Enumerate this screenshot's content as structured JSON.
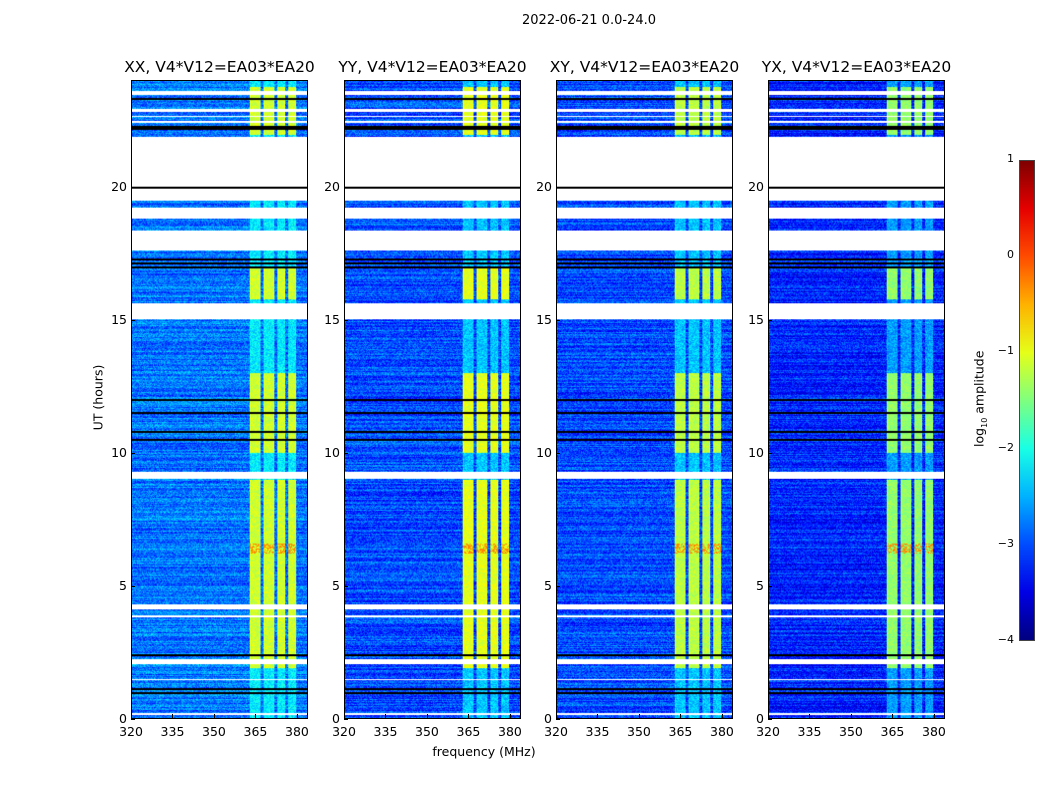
{
  "figure": {
    "suptitle": "2022-06-21 0.0-24.0"
  },
  "chart_data": {
    "type": "heatmap",
    "title": "2022-06-21 0.0-24.0",
    "xlabel": "frequency (MHz)",
    "ylabel": "UT (hours)",
    "xlim": [
      320,
      384
    ],
    "ylim": [
      0,
      24
    ],
    "xticks": [
      "320",
      "335",
      "350",
      "365",
      "380"
    ],
    "yticks": [
      "0",
      "5",
      "10",
      "15",
      "20"
    ],
    "colormap": "jet",
    "colorbar": {
      "label_pre": "log",
      "label_sub": "10",
      "label_post": " amplitude",
      "range": [
        -4,
        1
      ],
      "ticks": [
        "1",
        "0",
        "−1",
        "−2",
        "−3",
        "−4"
      ],
      "tick_values": [
        1,
        0,
        -1,
        -2,
        -3,
        -4
      ]
    },
    "panels": [
      {
        "title": "XX, V4*V12=EA03*EA20",
        "background_log_amp": -2.8,
        "rfi_log_amp": -1.1
      },
      {
        "title": "YY, V4*V12=EA03*EA20",
        "background_log_amp": -3.0,
        "rfi_log_amp": -1.0
      },
      {
        "title": "XY, V4*V12=EA03*EA20",
        "background_log_amp": -3.0,
        "rfi_log_amp": -1.2
      },
      {
        "title": "YX, V4*V12=EA03*EA20",
        "background_log_amp": -3.2,
        "rfi_log_amp": -1.4
      }
    ],
    "flagged_hours": [
      [
        20.05,
        21.9
      ],
      [
        19.5,
        19.95
      ],
      [
        18.85,
        19.25
      ],
      [
        17.65,
        18.4
      ],
      [
        15.05,
        15.65
      ],
      [
        9.05,
        9.3
      ],
      [
        4.1,
        4.3
      ],
      [
        3.82,
        3.9
      ],
      [
        2.05,
        2.25
      ],
      [
        1.45,
        1.5
      ],
      [
        0.15,
        0.2
      ],
      [
        23.5,
        23.65
      ],
      [
        22.85,
        22.95
      ],
      [
        22.65,
        22.72
      ],
      [
        22.45,
        22.5
      ]
    ],
    "blank_lines_hours": [
      19.98,
      17.0,
      17.15,
      17.3,
      12.0,
      11.5,
      10.8,
      10.5,
      2.4,
      1.1,
      0.95,
      23.35,
      22.2,
      22.3
    ],
    "rfi_channels_mhz": [
      [
        363,
        367
      ],
      [
        368,
        372
      ],
      [
        373,
        376
      ],
      [
        377,
        380
      ]
    ],
    "rfi_active_hours": [
      [
        1.9,
        9.0
      ],
      [
        10.0,
        13.0
      ],
      [
        15.8,
        17.0
      ],
      [
        22.0,
        23.8
      ]
    ],
    "peak_hours": [
      [
        6.2,
        6.6
      ]
    ]
  }
}
